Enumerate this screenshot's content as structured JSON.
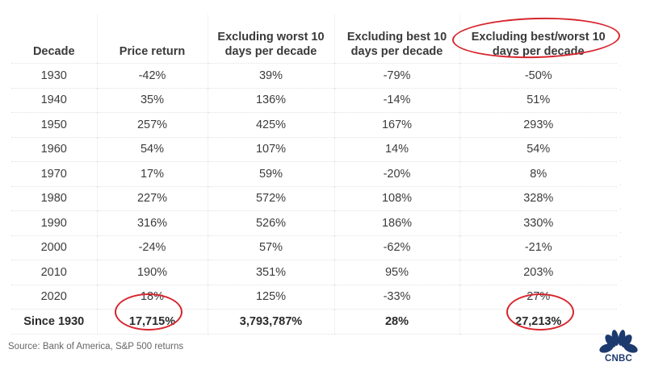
{
  "chart_data": {
    "type": "table",
    "title": "",
    "columns": [
      "Decade",
      "Price return",
      "Excluding worst 10 days per decade",
      "Excluding best 10 days per decade",
      "Excluding best/worst 10 days per decade"
    ],
    "rows": [
      [
        "1930",
        "-42%",
        "39%",
        "-79%",
        "-50%"
      ],
      [
        "1940",
        "35%",
        "136%",
        "-14%",
        "51%"
      ],
      [
        "1950",
        "257%",
        "425%",
        "167%",
        "293%"
      ],
      [
        "1960",
        "54%",
        "107%",
        "14%",
        "54%"
      ],
      [
        "1970",
        "17%",
        "59%",
        "-20%",
        "8%"
      ],
      [
        "1980",
        "227%",
        "572%",
        "108%",
        "328%"
      ],
      [
        "1990",
        "316%",
        "526%",
        "186%",
        "330%"
      ],
      [
        "2000",
        "-24%",
        "57%",
        "-62%",
        "-21%"
      ],
      [
        "2010",
        "190%",
        "351%",
        "95%",
        "203%"
      ],
      [
        "2020",
        "18%",
        "125%",
        "-33%",
        "27%"
      ]
    ],
    "total_row": [
      "Since 1930",
      "17,715%",
      "3,793,787%",
      "28%",
      "27,213%"
    ],
    "annotations": [
      "Red ellipse around 'Excluding best/worst 10 days per decade' header",
      "Red circle around 17,715%",
      "Red circle around 27,213%"
    ],
    "source": "Source: Bank of America, S&P 500 returns"
  },
  "table": {
    "headers": [
      {
        "line1": "",
        "line2": "Decade"
      },
      {
        "line1": "",
        "line2": "Price return"
      },
      {
        "line1": "Excluding worst 10",
        "line2": "days per decade"
      },
      {
        "line1": "Excluding best 10",
        "line2": "days per decade"
      },
      {
        "line1": "Excluding best/worst 10",
        "line2": "days per decade"
      }
    ],
    "rows": [
      [
        "1930",
        "-42%",
        "39%",
        "-79%",
        "-50%"
      ],
      [
        "1940",
        "35%",
        "136%",
        "-14%",
        "51%"
      ],
      [
        "1950",
        "257%",
        "425%",
        "167%",
        "293%"
      ],
      [
        "1960",
        "54%",
        "107%",
        "14%",
        "54%"
      ],
      [
        "1970",
        "17%",
        "59%",
        "-20%",
        "8%"
      ],
      [
        "1980",
        "227%",
        "572%",
        "108%",
        "328%"
      ],
      [
        "1990",
        "316%",
        "526%",
        "186%",
        "330%"
      ],
      [
        "2000",
        "-24%",
        "57%",
        "-62%",
        "-21%"
      ],
      [
        "2010",
        "190%",
        "351%",
        "95%",
        "203%"
      ],
      [
        "2020",
        "18%",
        "125%",
        "-33%",
        "27%"
      ]
    ],
    "total": [
      "Since 1930",
      "17,715%",
      "3,793,787%",
      "28%",
      "27,213%"
    ]
  },
  "source": "Source: Bank of America, S&P 500 returns",
  "logo": {
    "text": "CNBC",
    "color": "#1d3a6e"
  },
  "colors": {
    "highlight": "#d7262e",
    "text": "#333333",
    "grid": "#e2e2e2"
  }
}
